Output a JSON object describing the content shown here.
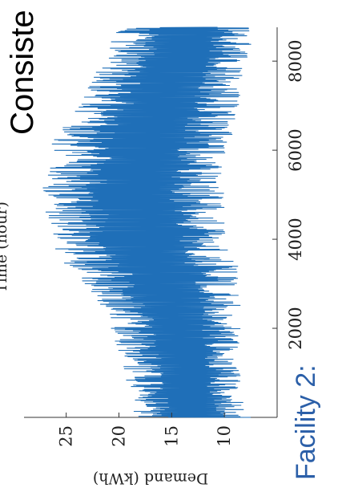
{
  "slide": {
    "title": "Facility 2:",
    "caption": "Consiste",
    "title_color": "#2b5fa8"
  },
  "chart_data": {
    "type": "line",
    "title": "",
    "xlabel": "Time (hour)",
    "ylabel": "Demand (kWh)",
    "xlim": [
      0,
      8760
    ],
    "ylim": [
      5,
      29
    ],
    "xticks": [
      2000,
      4000,
      6000,
      8000
    ],
    "yticks": [
      10,
      15,
      20,
      25
    ],
    "grid": false,
    "series": [
      {
        "color": "#1f6fb8",
        "envelope": {
          "x": [
            0,
            300,
            600,
            1000,
            1400,
            1800,
            2200,
            2600,
            3000,
            3300,
            3500,
            3700,
            4000,
            4300,
            4600,
            4800,
            5000,
            5300,
            5600,
            5900,
            6200,
            6500,
            6800,
            7100,
            7400,
            7700,
            8000,
            8300,
            8600,
            8760
          ],
          "min": [
            7.5,
            8.0,
            8.5,
            8.5,
            8.5,
            8.5,
            8.5,
            8.5,
            8.5,
            8.5,
            9.0,
            9.5,
            9.5,
            9.5,
            9.5,
            10.0,
            10.0,
            10.0,
            10.0,
            10.0,
            9.5,
            9.0,
            9.0,
            8.5,
            8.5,
            8.0,
            8.0,
            7.5,
            7.5,
            7.5
          ],
          "max": [
            19.0,
            18.5,
            19.0,
            19.5,
            20.0,
            20.5,
            21.0,
            22.0,
            23.5,
            24.0,
            25.5,
            26.0,
            26.5,
            26.5,
            27.0,
            28.0,
            27.5,
            27.0,
            26.5,
            26.0,
            26.5,
            25.5,
            24.5,
            23.5,
            23.0,
            22.5,
            21.5,
            21.0,
            20.5,
            20.0
          ]
        }
      }
    ]
  }
}
